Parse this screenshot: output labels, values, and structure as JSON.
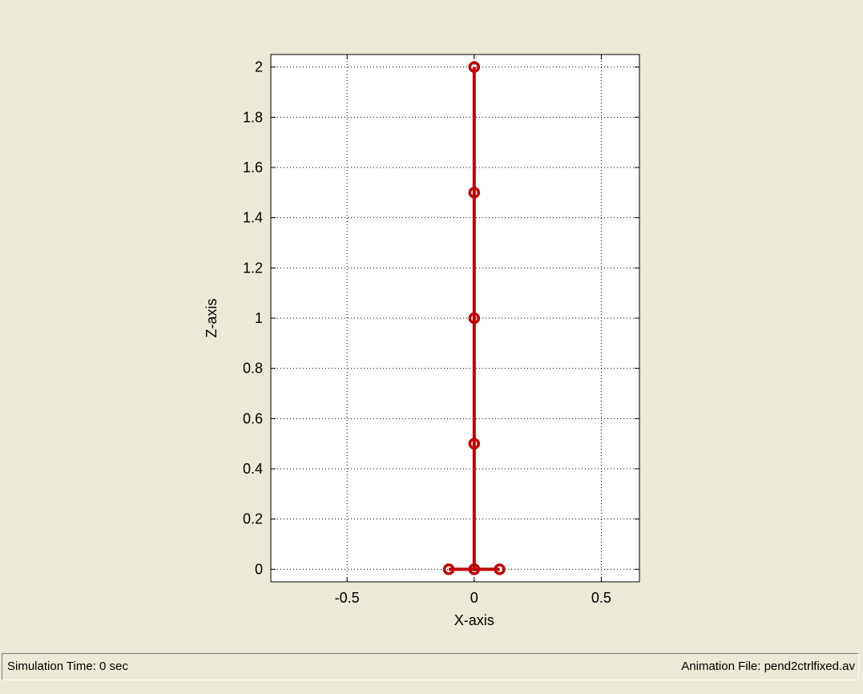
{
  "window": {
    "background": "#ece9d8"
  },
  "status_bar": {
    "simulation_time": "Simulation Time: 0 sec",
    "animation_file": "Animation File: pend2ctrlfixed.av"
  },
  "chart_data": {
    "type": "line",
    "xlabel": "X-axis",
    "ylabel": "Z-axis",
    "xlim": [
      -0.8,
      0.65
    ],
    "ylim": [
      -0.05,
      2.05
    ],
    "x_ticks": [
      -0.5,
      0,
      0.5
    ],
    "x_tick_labels": [
      "-0.5",
      "0",
      "0.5"
    ],
    "y_ticks": [
      0,
      0.2,
      0.4,
      0.6,
      0.8,
      1,
      1.2,
      1.4,
      1.6,
      1.8,
      2
    ],
    "y_tick_labels": [
      "0",
      "0.2",
      "0.4",
      "0.6",
      "0.8",
      "1",
      "1.2",
      "1.4",
      "1.6",
      "1.8",
      "2"
    ],
    "grid": true,
    "grid_style": "dotted",
    "line_color": "#c00000",
    "marker": "circle",
    "series": [
      {
        "x": [
          0,
          0,
          0,
          0,
          0
        ],
        "y": [
          0,
          0.5,
          1,
          1.5,
          2
        ]
      },
      {
        "x": [
          -0.1,
          0,
          0.1
        ],
        "y": [
          0,
          0,
          0
        ]
      }
    ]
  }
}
